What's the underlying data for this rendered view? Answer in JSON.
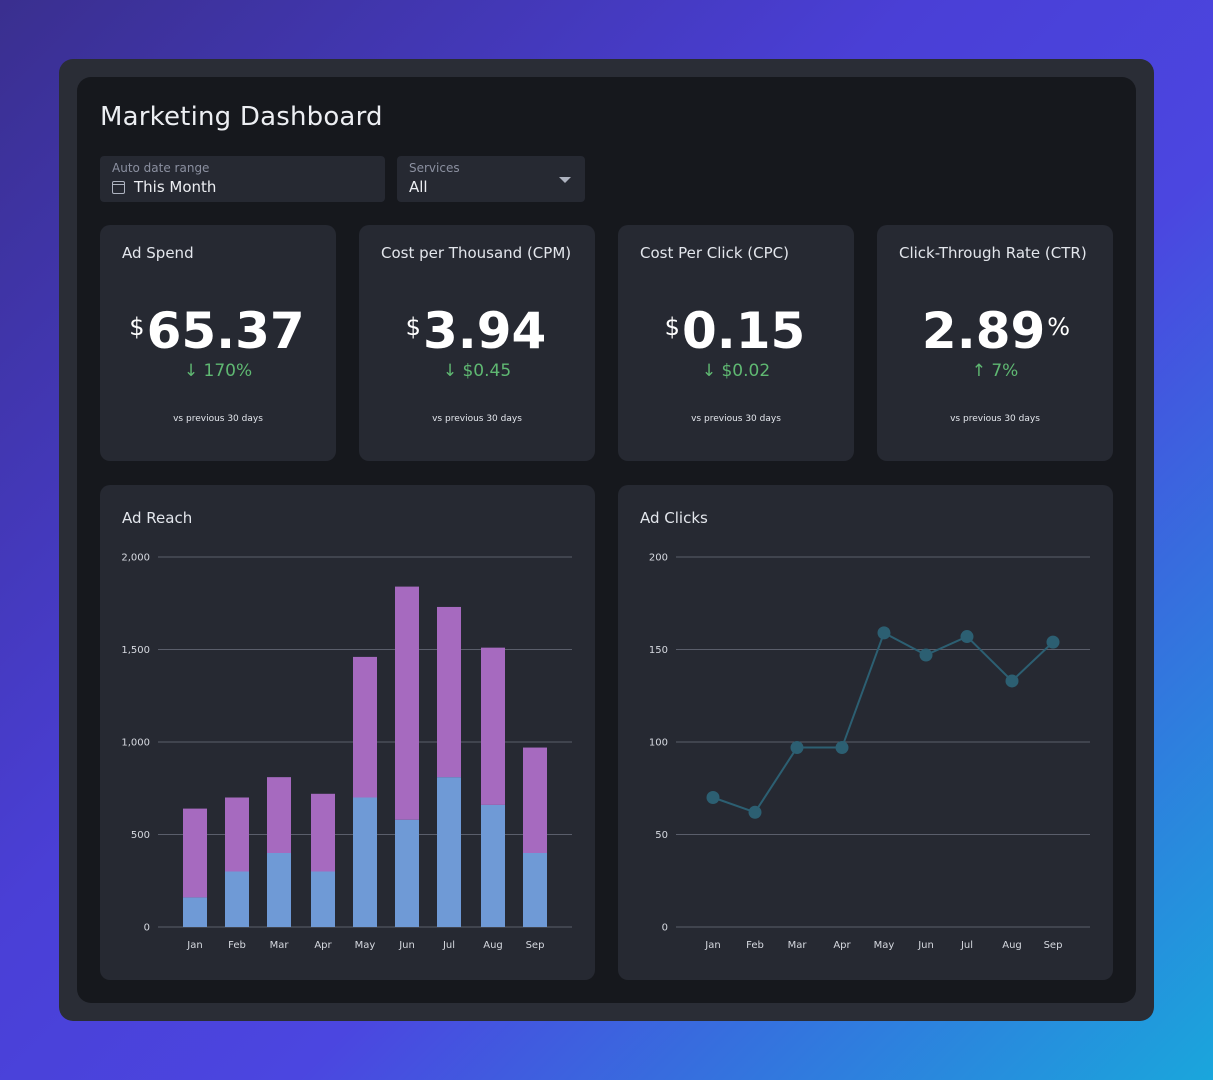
{
  "dashboard": {
    "title": "Marketing Dashboard"
  },
  "filters": {
    "date_range": {
      "label": "Auto date range",
      "value": "This Month"
    },
    "services": {
      "label": "Services",
      "value": "All"
    }
  },
  "kpis": [
    {
      "title": "Ad Spend",
      "prefix": "$",
      "value": "65.37",
      "suffix": "",
      "delta": "↓ 170%",
      "note": "vs previous 30 days"
    },
    {
      "title": "Cost per Thousand (CPM)",
      "prefix": "$",
      "value": "3.94",
      "suffix": "",
      "delta": "↓ $0.45",
      "note": "vs previous 30 days"
    },
    {
      "title": "Cost Per Click (CPC)",
      "prefix": "$",
      "value": "0.15",
      "suffix": "",
      "delta": "↓ $0.02",
      "note": "vs previous 30 days"
    },
    {
      "title": "Click-Through Rate (CTR)",
      "prefix": "",
      "value": "2.89",
      "suffix": "%",
      "delta": "↑ 7%",
      "note": "vs previous 30 days"
    }
  ],
  "colors": {
    "positive": "#5fb872",
    "bar_lower": "#6f9ad6",
    "bar_upper": "#a66abf",
    "line": "#2c5f72"
  },
  "chart_data": [
    {
      "type": "bar",
      "title": "Ad Reach",
      "stacked": true,
      "categories": [
        "Jan",
        "Feb",
        "Mar",
        "Apr",
        "May",
        "Jun",
        "Jul",
        "Aug",
        "Sep"
      ],
      "series": [
        {
          "values": [
            160,
            300,
            400,
            300,
            700,
            580,
            810,
            660,
            400
          ]
        },
        {
          "values": [
            480,
            400,
            410,
            420,
            760,
            1260,
            920,
            850,
            570
          ]
        }
      ],
      "ylim": [
        0,
        2000
      ],
      "yticks": [
        "0",
        "500",
        "1,000",
        "1,500",
        "2,000"
      ],
      "ytick_values": [
        0,
        500,
        1000,
        1500,
        2000
      ],
      "grid": true
    },
    {
      "type": "line",
      "title": "Ad Clicks",
      "categories": [
        "Jan",
        "Feb",
        "Mar",
        "Apr",
        "May",
        "Jun",
        "Jul",
        "Aug",
        "Sep"
      ],
      "series": [
        {
          "values": [
            70,
            62,
            97,
            97,
            159,
            147,
            157,
            133,
            154
          ]
        }
      ],
      "ylim": [
        0,
        200
      ],
      "yticks": [
        "0",
        "50",
        "100",
        "150",
        "200"
      ],
      "ytick_values": [
        0,
        50,
        100,
        150,
        200
      ],
      "grid": true
    }
  ]
}
